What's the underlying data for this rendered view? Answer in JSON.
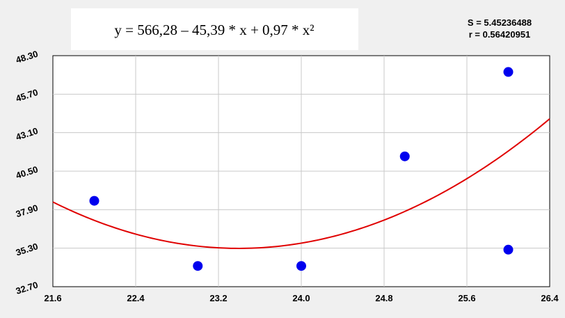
{
  "chart_data": {
    "type": "scatter",
    "equation": "y = 566,28 – 45,39 * x + 0,97 * x²",
    "stats": {
      "s_label": "S = 5.45236488",
      "r_label": "r = 0.56420951"
    },
    "xlim": [
      21.6,
      26.4
    ],
    "ylim": [
      32.7,
      48.3
    ],
    "x_ticks": [
      "21.6",
      "22.4",
      "23.2",
      "24.0",
      "24.8",
      "25.6",
      "26.4"
    ],
    "y_ticks": [
      "32.70",
      "35.30",
      "37.90",
      "40.50",
      "43.10",
      "45.70",
      "48.30"
    ],
    "grid": true,
    "points": [
      {
        "x": 22.0,
        "y": 38.5
      },
      {
        "x": 23.0,
        "y": 34.1
      },
      {
        "x": 24.0,
        "y": 34.1
      },
      {
        "x": 25.0,
        "y": 41.5
      },
      {
        "x": 26.0,
        "y": 47.2
      },
      {
        "x": 26.0,
        "y": 35.2
      }
    ],
    "fit": {
      "a": 566.28,
      "b": -45.39,
      "c": 0.97
    },
    "colors": {
      "points": "#0000ee",
      "fit": "#e00000",
      "grid": "#c8c8c8",
      "plot_bg": "#ffffff",
      "page_bg": "#f0f0f0"
    }
  }
}
